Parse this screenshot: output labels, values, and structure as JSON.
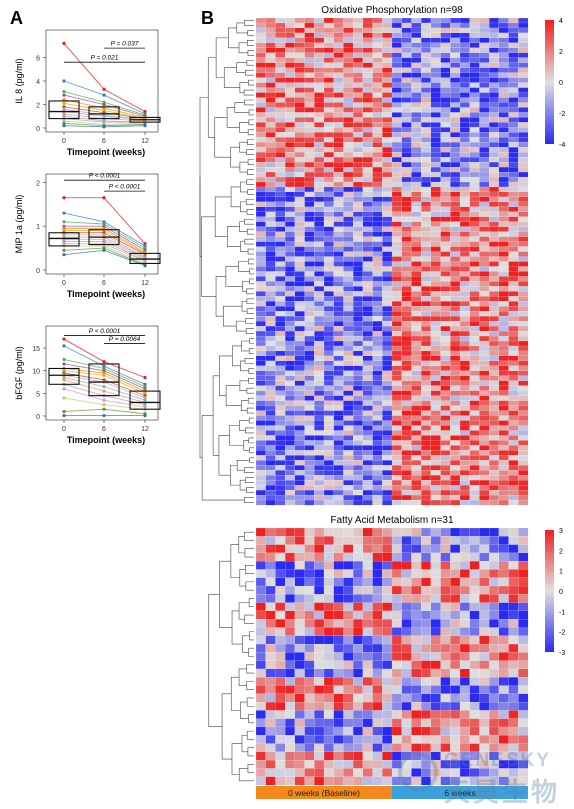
{
  "panel_labels": {
    "a": "A",
    "b": "B"
  },
  "watermark": {
    "text": "GENESKY",
    "cn": "天昊生物"
  },
  "chart_data": [
    {
      "type": "boxplot",
      "panel": "A",
      "ylabel": "IL 8 (pg/ml)",
      "xlabel": "Timepoint (weeks)",
      "categories": [
        "0",
        "6",
        "12"
      ],
      "ylim": [
        0,
        8
      ],
      "yticks": [
        0,
        2,
        4,
        6
      ],
      "boxes": [
        {
          "q1": 0.8,
          "median": 1.4,
          "q3": 2.3
        },
        {
          "q1": 0.8,
          "median": 1.2,
          "q3": 1.8
        },
        {
          "q1": 0.5,
          "median": 0.7,
          "q3": 0.9
        }
      ],
      "points": [
        [
          7.2,
          4.0,
          3.1,
          2.8,
          2.4,
          2.1,
          1.8,
          1.6,
          1.4,
          1.2,
          1.0,
          0.8,
          0.6,
          0.4,
          0.2
        ],
        [
          3.3,
          2.8,
          2.2,
          2.0,
          1.7,
          1.5,
          1.3,
          1.1,
          1.0,
          0.8,
          0.6,
          0.5,
          0.3,
          0.2,
          0.1
        ],
        [
          1.4,
          1.2,
          1.1,
          1.0,
          0.9,
          0.8,
          0.8,
          0.7,
          0.7,
          0.6,
          0.5,
          0.5,
          0.4,
          0.3,
          0.2
        ]
      ],
      "annotations": [
        {
          "text": "P = 0.037",
          "from": 1,
          "to": 2,
          "y": 6.8
        },
        {
          "text": "P = 0.021",
          "from": 0,
          "to": 2,
          "y": 5.6
        }
      ]
    },
    {
      "type": "boxplot",
      "panel": "A",
      "ylabel": "MIP 1a (pg/ml)",
      "xlabel": "Timepoint (weeks)",
      "categories": [
        "0",
        "6",
        "12"
      ],
      "ylim": [
        0,
        2.1
      ],
      "yticks": [
        0,
        1,
        2
      ],
      "boxes": [
        {
          "q1": 0.55,
          "median": 0.72,
          "q3": 0.85
        },
        {
          "q1": 0.58,
          "median": 0.75,
          "q3": 0.92
        },
        {
          "q1": 0.15,
          "median": 0.25,
          "q3": 0.38
        }
      ],
      "points": [
        [
          1.65,
          1.3,
          1.1,
          1.0,
          0.95,
          0.9,
          0.85,
          0.8,
          0.75,
          0.7,
          0.65,
          0.6,
          0.55,
          0.45,
          0.35
        ],
        [
          1.65,
          1.1,
          1.05,
          1.0,
          0.95,
          0.9,
          0.85,
          0.8,
          0.75,
          0.7,
          0.65,
          0.6,
          0.55,
          0.5,
          0.45
        ],
        [
          0.6,
          0.55,
          0.5,
          0.45,
          0.4,
          0.38,
          0.35,
          0.3,
          0.28,
          0.25,
          0.22,
          0.2,
          0.15,
          0.12,
          0.1
        ]
      ],
      "annotations": [
        {
          "text": "P < 0.0001",
          "from": 0,
          "to": 2,
          "y": 2.05
        },
        {
          "text": "P < 0.0001",
          "from": 1,
          "to": 2,
          "y": 1.8
        }
      ]
    },
    {
      "type": "boxplot",
      "panel": "A",
      "ylabel": "bFGF (pg/ml)",
      "xlabel": "Timepoint (weeks)",
      "categories": [
        "0",
        "6",
        "12"
      ],
      "ylim": [
        0,
        19
      ],
      "yticks": [
        0,
        5,
        10,
        15
      ],
      "boxes": [
        {
          "q1": 7.0,
          "median": 9.0,
          "q3": 10.5
        },
        {
          "q1": 4.5,
          "median": 7.5,
          "q3": 11.5
        },
        {
          "q1": 1.5,
          "median": 3.0,
          "q3": 5.5
        }
      ],
      "points": [
        [
          17.0,
          15.5,
          12.5,
          11.5,
          10.5,
          10.0,
          9.5,
          9.0,
          8.5,
          8.0,
          7.0,
          6.0,
          4.0,
          1.0,
          0.1
        ],
        [
          12.0,
          11.0,
          10.5,
          10.0,
          9.5,
          9.0,
          8.0,
          7.5,
          6.5,
          5.5,
          4.5,
          3.5,
          2.5,
          1.5,
          0.1
        ],
        [
          8.5,
          7.0,
          6.5,
          6.0,
          5.5,
          5.0,
          4.5,
          4.0,
          3.5,
          3.0,
          2.5,
          2.0,
          1.5,
          0.5,
          0.1
        ]
      ],
      "annotations": [
        {
          "text": "P < 0.0001",
          "from": 0,
          "to": 2,
          "y": 17.8
        },
        {
          "text": "P = 0.0064",
          "from": 1,
          "to": 2,
          "y": 16.0
        }
      ]
    },
    {
      "type": "heatmap",
      "panel": "B",
      "title": "Oxidative Phosphorylation n=98",
      "rows": 98,
      "columns": 28,
      "legend_ticks": [
        4,
        2,
        0,
        -2,
        -4
      ],
      "colors": {
        "low": "#2a2af2",
        "mid": "#e0e0e0",
        "high": "#ee2020"
      }
    },
    {
      "type": "heatmap",
      "panel": "B",
      "title": "Fatty Acid Metabolism n=31",
      "rows": 31,
      "columns": 28,
      "legend_ticks": [
        3,
        2,
        1,
        0,
        -1,
        -2,
        -3
      ],
      "colors": {
        "low": "#2a2af2",
        "mid": "#e0e0e0",
        "high": "#ee2020"
      },
      "groups": [
        {
          "label": "0 weeks (Baseline)",
          "columns": 14,
          "color": "#f28a1e"
        },
        {
          "label": "6 weeks",
          "columns": 14,
          "color": "#3aa1dc"
        }
      ]
    }
  ]
}
